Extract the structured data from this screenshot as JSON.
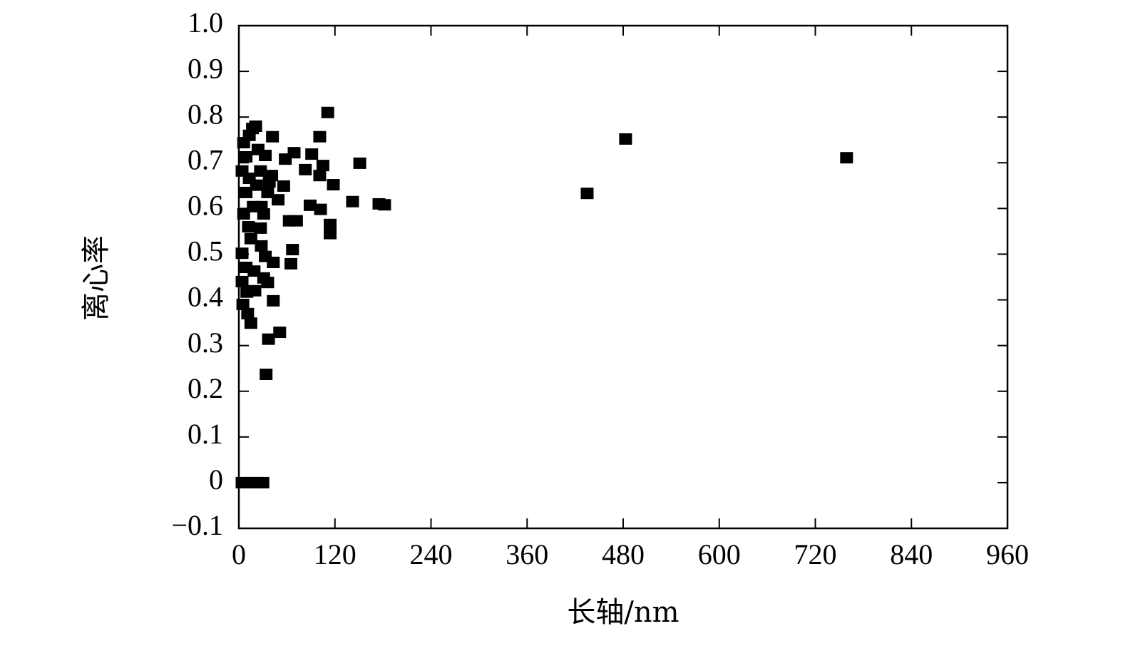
{
  "chart_data": {
    "type": "scatter",
    "x_label": "长轴/nm",
    "y_label": "离心率",
    "color": "#000000",
    "marker": "square",
    "xlim": [
      0,
      960
    ],
    "xticks": [
      0,
      120,
      240,
      360,
      480,
      600,
      720,
      840,
      960
    ],
    "ylim": [
      -0.1,
      1
    ],
    "yticks": [
      {
        "value": -0.1,
        "label": "−0.1"
      },
      0,
      0.1,
      0.2,
      0.3,
      0.4,
      0.5,
      0.6,
      0.7,
      0.8,
      0.9,
      {
        "value": 1,
        "label": "1.0"
      }
    ],
    "x": [
      111,
      483,
      759,
      435,
      151,
      142,
      175,
      182,
      101,
      114,
      114,
      118,
      91,
      105,
      101,
      83,
      69,
      58,
      89,
      102,
      63,
      72,
      67,
      65,
      42,
      21,
      17,
      33,
      56,
      49,
      41,
      43,
      51,
      37,
      34,
      15,
      11,
      5,
      43,
      36,
      31,
      20,
      28,
      33,
      27,
      4,
      13,
      22,
      30,
      6,
      9,
      4,
      13,
      9,
      18,
      6,
      12,
      4,
      9,
      4,
      15,
      22,
      27,
      31,
      36,
      24,
      13,
      28,
      38,
      19,
      10
    ],
    "y": [
      0.81,
      0.752,
      0.711,
      0.633,
      0.699,
      0.615,
      0.61,
      0.608,
      0.757,
      0.565,
      0.545,
      0.652,
      0.719,
      0.694,
      0.672,
      0.685,
      0.722,
      0.708,
      0.607,
      0.598,
      0.573,
      0.573,
      0.51,
      0.479,
      0.757,
      0.78,
      0.775,
      0.716,
      0.649,
      0.619,
      0.672,
      0.398,
      0.329,
      0.314,
      0.237,
      0.349,
      0.37,
      0.39,
      0.482,
      0.438,
      0.448,
      0.42,
      0.518,
      0.495,
      0.557,
      0,
      0,
      0,
      0,
      0.744,
      0.713,
      0.682,
      0.666,
      0.635,
      0.604,
      0.588,
      0.56,
      0.502,
      0.471,
      0.44,
      0.534,
      0.651,
      0.682,
      0.588,
      0.635,
      0.729,
      0.76,
      0.604,
      0.658,
      0.463,
      0.417
    ]
  }
}
